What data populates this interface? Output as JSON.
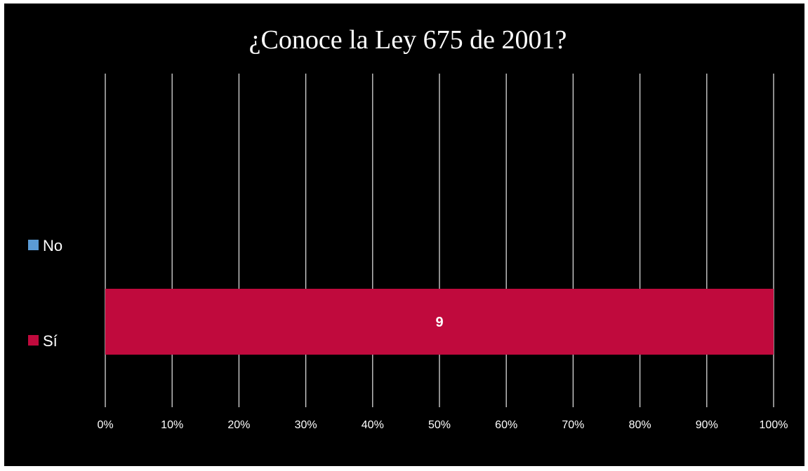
{
  "chart_data": {
    "type": "bar",
    "orientation": "horizontal",
    "stacked": "percent",
    "title": "¿Conoce la Ley 675 de 2001?",
    "categories": [
      ""
    ],
    "series": [
      {
        "name": "Sí",
        "values": [
          9
        ],
        "color": "#c00a3d",
        "data_labels": [
          "9"
        ]
      },
      {
        "name": "No",
        "values": [
          0
        ],
        "color": "#5b9bd5",
        "data_labels": []
      }
    ],
    "xlim": [
      0,
      100
    ],
    "x_ticks": [
      "0%",
      "10%",
      "20%",
      "30%",
      "40%",
      "50%",
      "60%",
      "70%",
      "80%",
      "90%",
      "100%"
    ],
    "grid": "vertical",
    "legend_position": "left",
    "background_color": "#000000",
    "text_color": "#ffffff",
    "gridline_color": "#d9d9d9"
  }
}
